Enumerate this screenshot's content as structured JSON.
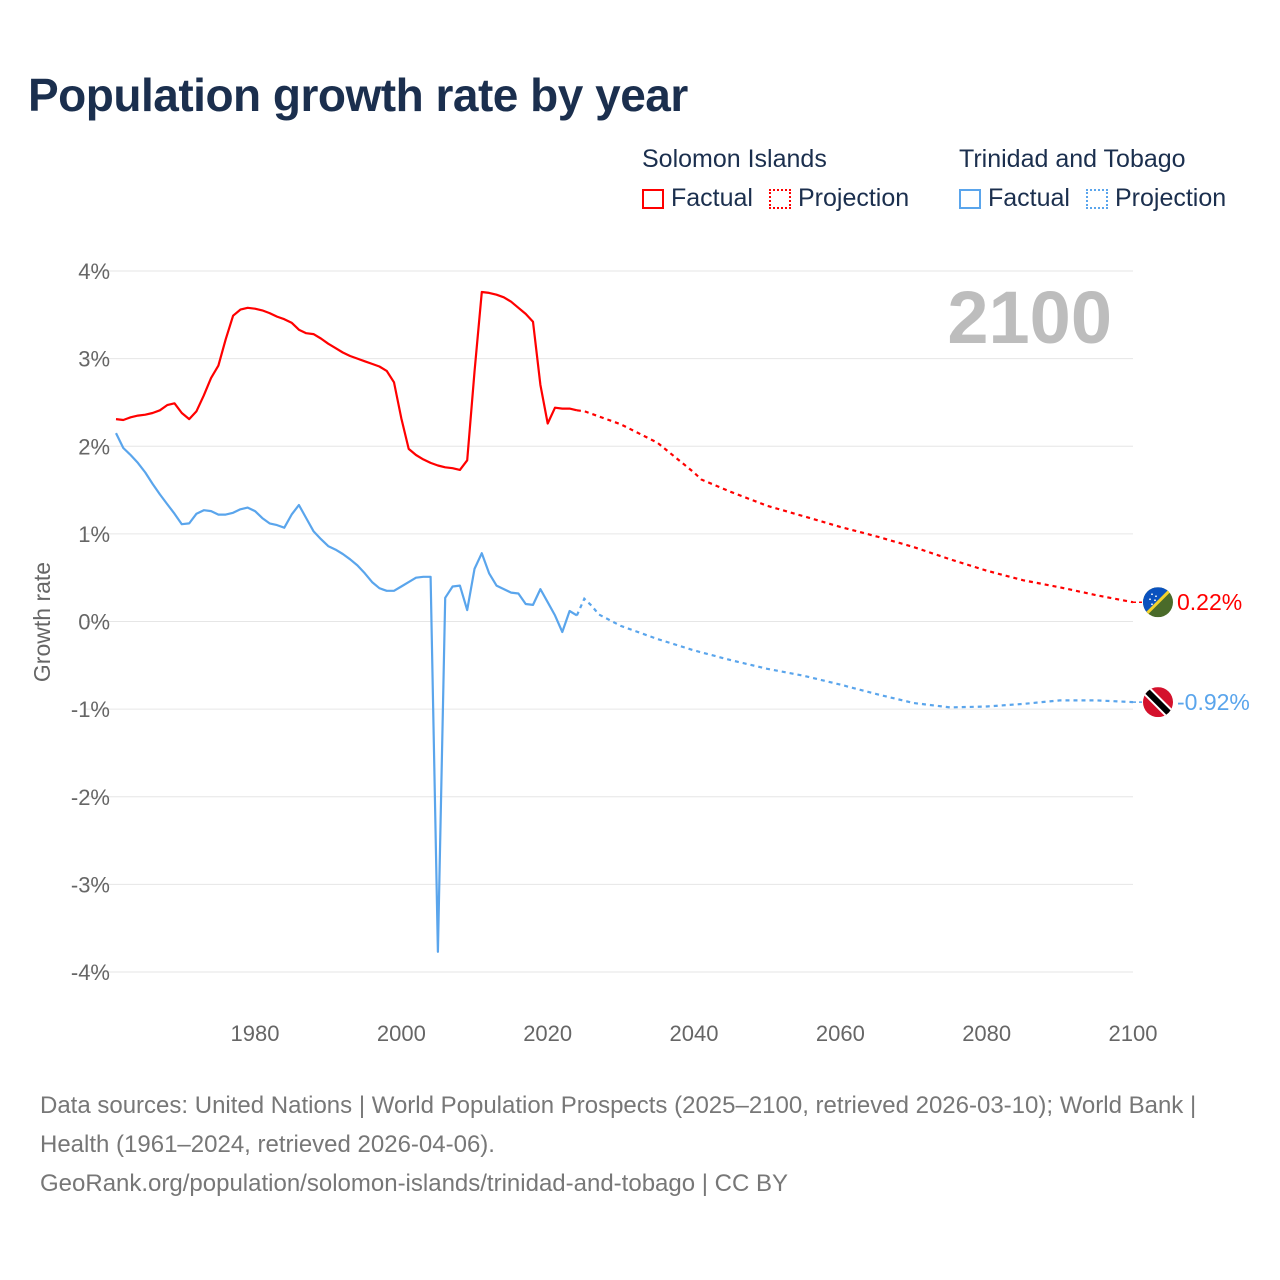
{
  "title": "Population growth rate by year",
  "legend": {
    "groups": [
      {
        "name": "Solomon Islands",
        "color": "#ff0000",
        "factual": "Factual",
        "projection": "Projection"
      },
      {
        "name": "Trinidad and Tobago",
        "color": "#5aa5ec",
        "factual": "Factual",
        "projection": "Projection"
      }
    ]
  },
  "year_watermark": "2100",
  "footer": {
    "sources": "Data sources: United Nations | World Population Prospects (2025–2100, retrieved 2026-03-10); World Bank | Health (1961–2024, retrieved 2026-04-06).",
    "link": "GeoRank.org/population/solomon-islands/trinidad-and-tobago | CC BY"
  },
  "chart_data": {
    "type": "line",
    "title": "Population growth rate by year",
    "xlabel": "",
    "ylabel": "Growth rate",
    "xlim": [
      1961,
      2100
    ],
    "ylim": [
      -4,
      4
    ],
    "xticks": [
      1980,
      2000,
      2020,
      2040,
      2060,
      2080,
      2100
    ],
    "yticks": [
      4,
      3,
      2,
      1,
      0,
      -1,
      -2,
      -3,
      -4
    ],
    "ytick_labels": [
      "4%",
      "3%",
      "2%",
      "1%",
      "0%",
      "-1%",
      "-2%",
      "-3%",
      "-4%"
    ],
    "grid": true,
    "series": [
      {
        "name": "Solomon Islands",
        "color": "#ff0000",
        "end_label": "0.22%",
        "factual": {
          "x": [
            1961,
            1962,
            1963,
            1964,
            1965,
            1966,
            1967,
            1968,
            1969,
            1970,
            1971,
            1972,
            1973,
            1974,
            1975,
            1976,
            1977,
            1978,
            1979,
            1980,
            1981,
            1982,
            1983,
            1984,
            1985,
            1986,
            1987,
            1988,
            1989,
            1990,
            1991,
            1992,
            1993,
            1994,
            1995,
            1996,
            1997,
            1998,
            1999,
            2000,
            2001,
            2002,
            2003,
            2004,
            2005,
            2006,
            2007,
            2008,
            2009,
            2010,
            2011,
            2012,
            2013,
            2014,
            2015,
            2016,
            2017,
            2018,
            2019,
            2020,
            2021,
            2022,
            2023,
            2024
          ],
          "y": [
            2.31,
            2.3,
            2.33,
            2.35,
            2.36,
            2.38,
            2.41,
            2.47,
            2.49,
            2.38,
            2.31,
            2.4,
            2.58,
            2.78,
            2.92,
            3.22,
            3.49,
            3.56,
            3.58,
            3.57,
            3.55,
            3.52,
            3.48,
            3.45,
            3.41,
            3.33,
            3.29,
            3.28,
            3.23,
            3.17,
            3.12,
            3.07,
            3.03,
            3.0,
            2.97,
            2.94,
            2.91,
            2.86,
            2.73,
            2.32,
            1.97,
            1.9,
            1.85,
            1.81,
            1.78,
            1.76,
            1.75,
            1.73,
            1.84,
            2.85,
            3.76,
            3.75,
            3.73,
            3.7,
            3.65,
            3.58,
            3.51,
            3.42,
            2.7,
            2.26,
            2.44,
            2.43,
            2.43,
            2.41
          ]
        },
        "projection": {
          "x": [
            2024,
            2025,
            2030,
            2035,
            2040,
            2041,
            2045,
            2050,
            2055,
            2060,
            2065,
            2070,
            2075,
            2080,
            2085,
            2090,
            2095,
            2100
          ],
          "y": [
            2.41,
            2.4,
            2.25,
            2.04,
            1.7,
            1.62,
            1.48,
            1.32,
            1.2,
            1.08,
            0.97,
            0.85,
            0.71,
            0.58,
            0.47,
            0.39,
            0.3,
            0.22
          ]
        }
      },
      {
        "name": "Trinidad and Tobago",
        "color": "#5aa5ec",
        "end_label": "-0.92%",
        "factual": {
          "x": [
            1961,
            1962,
            1963,
            1964,
            1965,
            1966,
            1967,
            1968,
            1969,
            1970,
            1971,
            1972,
            1973,
            1974,
            1975,
            1976,
            1977,
            1978,
            1979,
            1980,
            1981,
            1982,
            1983,
            1984,
            1985,
            1986,
            1987,
            1988,
            1989,
            1990,
            1991,
            1992,
            1993,
            1994,
            1995,
            1996,
            1997,
            1998,
            1999,
            2000,
            2001,
            2002,
            2003,
            2004,
            2005,
            2006,
            2007,
            2008,
            2009,
            2010,
            2011,
            2012,
            2013,
            2014,
            2015,
            2016,
            2017,
            2018,
            2019,
            2020,
            2021,
            2022,
            2023,
            2024
          ],
          "y": [
            2.15,
            1.98,
            1.9,
            1.81,
            1.7,
            1.57,
            1.45,
            1.34,
            1.23,
            1.11,
            1.12,
            1.23,
            1.27,
            1.26,
            1.22,
            1.22,
            1.24,
            1.28,
            1.3,
            1.26,
            1.18,
            1.12,
            1.1,
            1.07,
            1.22,
            1.33,
            1.18,
            1.03,
            0.94,
            0.86,
            0.82,
            0.77,
            0.71,
            0.64,
            0.55,
            0.45,
            0.38,
            0.35,
            0.35,
            0.4,
            0.45,
            0.5,
            0.51,
            0.51,
            -3.77,
            0.27,
            0.4,
            0.41,
            0.13,
            0.6,
            0.78,
            0.55,
            0.41,
            0.37,
            0.33,
            0.32,
            0.2,
            0.19,
            0.37,
            0.22,
            0.07,
            -0.12,
            0.12,
            0.07
          ]
        },
        "projection": {
          "x": [
            2024,
            2025,
            2026,
            2027,
            2030,
            2035,
            2040,
            2045,
            2050,
            2055,
            2060,
            2065,
            2070,
            2075,
            2080,
            2085,
            2090,
            2095,
            2100
          ],
          "y": [
            0.07,
            0.26,
            0.18,
            0.08,
            -0.05,
            -0.2,
            -0.33,
            -0.44,
            -0.54,
            -0.62,
            -0.72,
            -0.83,
            -0.93,
            -0.98,
            -0.97,
            -0.94,
            -0.9,
            -0.9,
            -0.92
          ]
        }
      }
    ]
  }
}
